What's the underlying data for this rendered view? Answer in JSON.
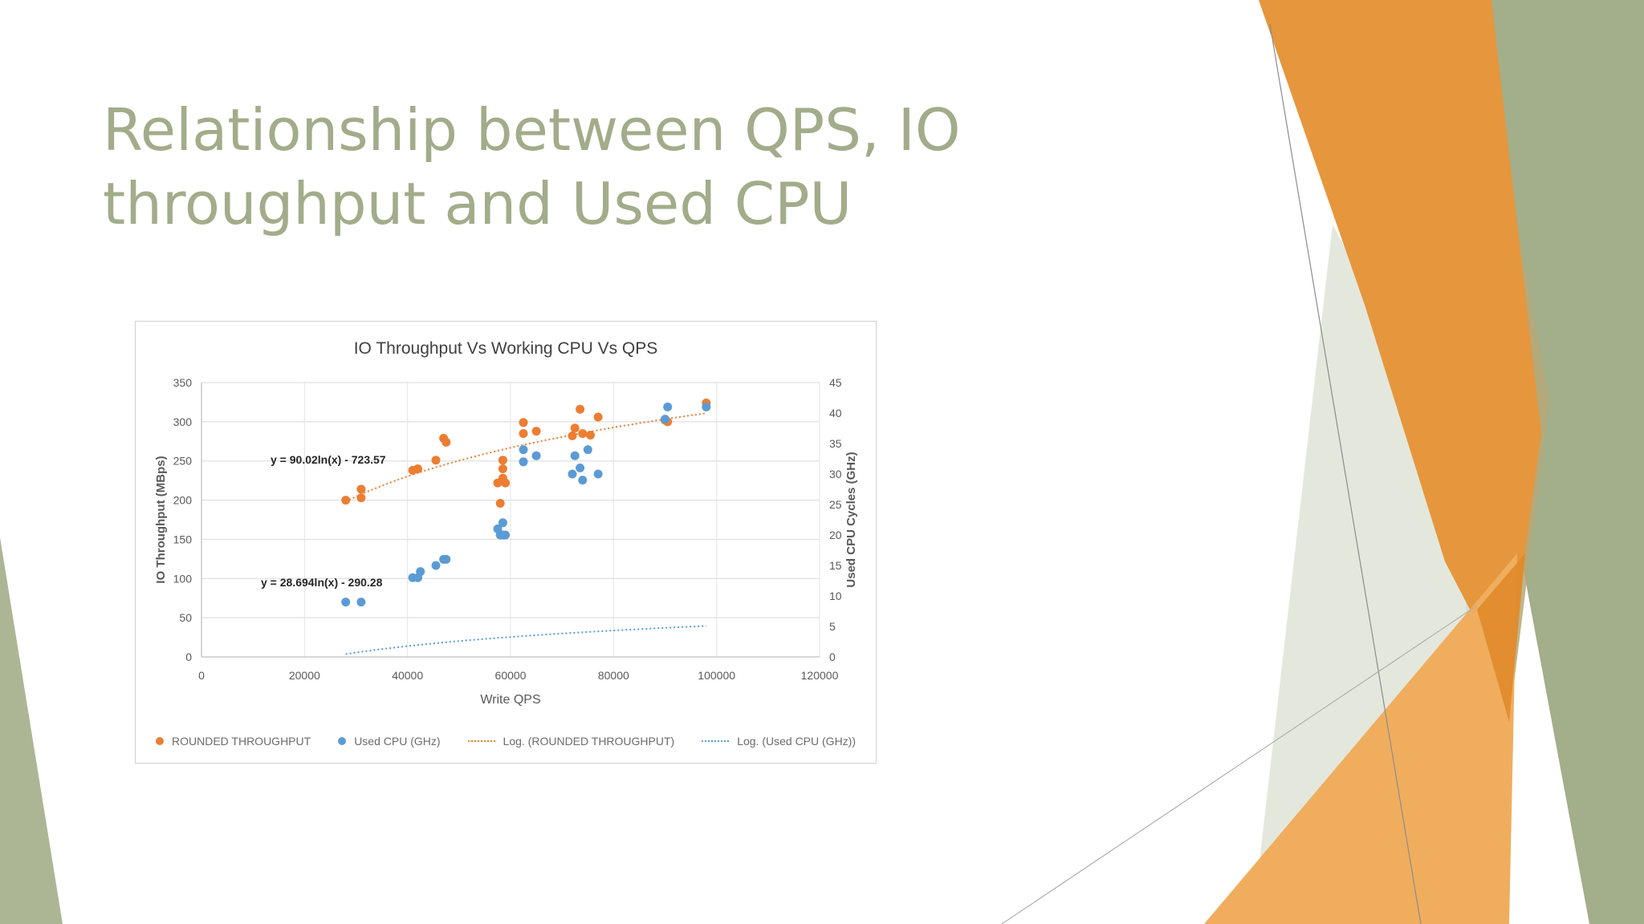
{
  "slide": {
    "title_line1": "Relationship between QPS, IO",
    "title_line2": "throughput and Used CPU"
  },
  "colors": {
    "title": "#a2ac8a",
    "orange": "#e8953a",
    "green": "#a3ae8a",
    "series_orange": "#ed7d31",
    "series_blue": "#5b9bd5"
  },
  "chart_data": {
    "type": "scatter",
    "title": "IO Throughput Vs Working CPU Vs QPS",
    "xlabel": "Write QPS",
    "ylabel": "IO Throughput (MBps)",
    "y2label": "Used CPU Cycles (GHz)",
    "xlim": [
      0,
      120000
    ],
    "ylim": [
      0,
      350
    ],
    "y2lim": [
      0,
      45
    ],
    "xticks": [
      "0",
      "20000",
      "40000",
      "60000",
      "80000",
      "100000",
      "120000"
    ],
    "yticks": [
      "0",
      "50",
      "100",
      "150",
      "200",
      "250",
      "300",
      "350"
    ],
    "y2ticks": [
      "0",
      "5",
      "10",
      "15",
      "20",
      "25",
      "30",
      "35",
      "40",
      "45"
    ],
    "grid": true,
    "legend_position": "bottom",
    "series": [
      {
        "name": "ROUNDED THROUGHPUT",
        "axis": "left",
        "color": "#ed7d31",
        "points": [
          [
            28000,
            200
          ],
          [
            31000,
            203
          ],
          [
            31000,
            214
          ],
          [
            41000,
            238
          ],
          [
            42000,
            240
          ],
          [
            45500,
            251
          ],
          [
            47000,
            279
          ],
          [
            47500,
            274
          ],
          [
            57500,
            222
          ],
          [
            58000,
            196
          ],
          [
            58500,
            251
          ],
          [
            58500,
            240
          ],
          [
            58500,
            228
          ],
          [
            59000,
            222
          ],
          [
            62500,
            299
          ],
          [
            62500,
            285
          ],
          [
            65000,
            288
          ],
          [
            72000,
            282
          ],
          [
            72500,
            292
          ],
          [
            73500,
            316
          ],
          [
            74000,
            285
          ],
          [
            75500,
            283
          ],
          [
            77000,
            306
          ],
          [
            90000,
            302
          ],
          [
            90500,
            300
          ],
          [
            98000,
            324
          ]
        ]
      },
      {
        "name": "Used CPU (GHz)",
        "axis": "right",
        "color": "#5b9bd5",
        "points": [
          [
            28000,
            9
          ],
          [
            31000,
            9
          ],
          [
            41000,
            13
          ],
          [
            42000,
            13
          ],
          [
            42500,
            14
          ],
          [
            45500,
            15
          ],
          [
            47000,
            16
          ],
          [
            47500,
            16
          ],
          [
            57500,
            21
          ],
          [
            58000,
            20
          ],
          [
            58500,
            22
          ],
          [
            58500,
            20
          ],
          [
            59000,
            20
          ],
          [
            62500,
            34
          ],
          [
            62500,
            32
          ],
          [
            65000,
            33
          ],
          [
            72000,
            30
          ],
          [
            72500,
            33
          ],
          [
            73500,
            31
          ],
          [
            74000,
            29
          ],
          [
            75000,
            34
          ],
          [
            77000,
            30
          ],
          [
            90000,
            39
          ],
          [
            90500,
            41
          ],
          [
            98000,
            41
          ]
        ]
      }
    ],
    "trendlines": [
      {
        "name": "Log. (ROUNDED THROUGHPUT)",
        "axis": "left",
        "a": 90.02,
        "b": -723.57,
        "x_range": [
          28000,
          98000
        ],
        "equation": "y = 90.02ln(x) - 723.57",
        "color": "#ed7d31"
      },
      {
        "name": "Log. (Used CPU (GHz))",
        "axis": "left",
        "a": 28.694,
        "b": -290.28,
        "x_range": [
          28000,
          98000
        ],
        "equation": "y = 28.694ln(x) - 290.28",
        "color": "#5b9bd5"
      }
    ]
  }
}
